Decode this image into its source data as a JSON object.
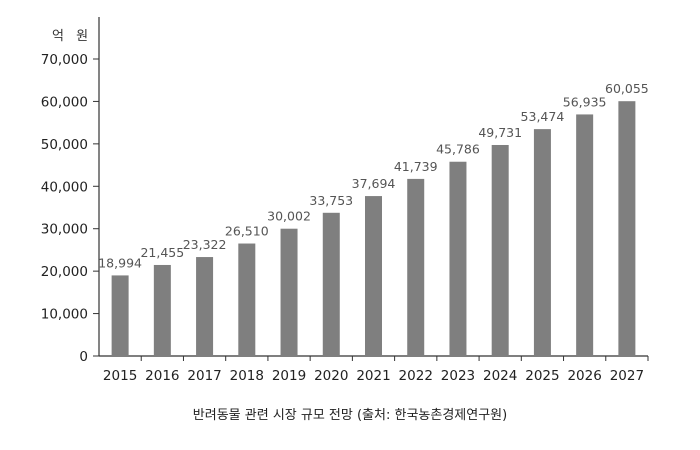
{
  "chart_data": {
    "type": "bar",
    "title": "",
    "ylabel": "억 원",
    "xlabel": "",
    "categories": [
      "2015",
      "2016",
      "2017",
      "2018",
      "2019",
      "2020",
      "2021",
      "2022",
      "2023",
      "2024",
      "2025",
      "2026",
      "2027"
    ],
    "values": [
      18994,
      21455,
      23322,
      26510,
      30002,
      33753,
      37694,
      41739,
      45786,
      49731,
      53474,
      56935,
      60055
    ],
    "value_labels": [
      "18,994",
      "21,455",
      "23,322",
      "26,510",
      "30,002",
      "33,753",
      "37,694",
      "41,739",
      "45,786",
      "49,731",
      "53,474",
      "56,935",
      "60,055"
    ],
    "ylim": [
      0,
      70000
    ],
    "yticks": [
      0,
      10000,
      20000,
      30000,
      40000,
      50000,
      60000,
      70000
    ],
    "ytick_labels": [
      "0",
      "10,000",
      "20,000",
      "30,000",
      "40,000",
      "50,000",
      "60,000",
      "70,000"
    ],
    "grid": false,
    "bar_color": "#7f7f7f"
  },
  "caption": "반려동물 관련 시장 규모 전망 (출처: 한국농촌경제연구원)"
}
